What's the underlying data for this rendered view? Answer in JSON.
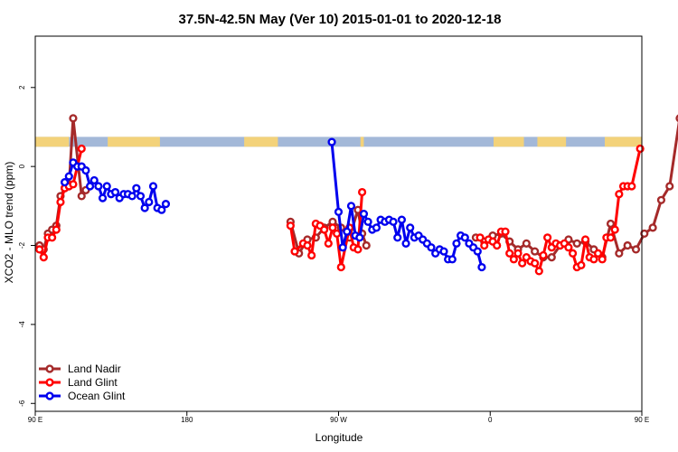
{
  "chart_data": {
    "type": "line",
    "title": "37.5N-42.5N May (Ver 10)   2015-01-01 to 2020-12-18",
    "xlabel": "Longitude",
    "ylabel": "XCO2 - MLO trend (ppm)",
    "xlim": [
      90,
      450
    ],
    "ylim": [
      -6.2,
      3.3
    ],
    "x_ticks": [
      {
        "value": 90,
        "label": "90 E"
      },
      {
        "value": 180,
        "label": "180"
      },
      {
        "value": 270,
        "label": "90 W"
      },
      {
        "value": 360,
        "label": "0"
      },
      {
        "value": 450,
        "label": "90 E"
      },
      {
        "value": 540,
        "label": "180"
      }
    ],
    "y_ticks": [
      {
        "value": 2,
        "label": "2"
      },
      {
        "value": 0,
        "label": "0"
      },
      {
        "value": -2,
        "label": "-2"
      },
      {
        "value": -4,
        "label": "-4"
      },
      {
        "value": -6,
        "label": "-6"
      }
    ],
    "legend_position": "bottom-left",
    "surface_band": {
      "y_range": [
        0.5,
        0.75
      ],
      "ocean_color": "#a3b8d8",
      "land_color": "#f3d27a",
      "land_segments": [
        [
          90,
          110
        ],
        [
          133,
          164
        ],
        [
          214,
          234
        ],
        [
          283,
          285
        ],
        [
          362,
          380
        ],
        [
          388,
          405
        ],
        [
          428,
          454
        ],
        [
          477,
          499
        ],
        [
          518,
          540
        ]
      ]
    },
    "series": [
      {
        "name": "Land Nadir",
        "color": "#a52a2a",
        "segments": [
          [
            [
              92.5,
              -2.0
            ],
            [
              95,
              -2.1
            ],
            [
              97.5,
              -1.7
            ],
            [
              100,
              -1.6
            ],
            [
              102.5,
              -1.5
            ],
            [
              105,
              -0.75
            ],
            [
              107.5,
              -0.55
            ],
            [
              110,
              -0.5
            ],
            [
              112.5,
              1.22
            ],
            [
              117.5,
              -0.75
            ],
            [
              120,
              -0.6
            ]
          ],
          [
            [
              241.5,
              -1.4
            ],
            [
              246.5,
              -2.2
            ],
            [
              251.5,
              -1.85
            ],
            [
              256.5,
              -1.8
            ],
            [
              261.5,
              -1.55
            ],
            [
              266.5,
              -1.4
            ],
            [
              271.5,
              -1.55
            ],
            [
              276.5,
              -1.8
            ],
            [
              281.5,
              -1.1
            ],
            [
              284,
              -1.7
            ],
            [
              286.5,
              -2.0
            ]
          ],
          [
            [
              351.5,
              -1.8
            ],
            [
              356.5,
              -1.9
            ],
            [
              361.5,
              -1.75
            ],
            [
              366.5,
              -1.7
            ],
            [
              371.5,
              -1.9
            ],
            [
              376.5,
              -2.1
            ],
            [
              381.5,
              -1.95
            ],
            [
              386.5,
              -2.15
            ],
            [
              391.5,
              -2.3
            ],
            [
              396.5,
              -2.3
            ],
            [
              401.5,
              -2.0
            ],
            [
              406.5,
              -1.85
            ],
            [
              411.5,
              -1.95
            ],
            [
              416.5,
              -1.9
            ],
            [
              421.5,
              -2.1
            ],
            [
              426.5,
              -2.3
            ],
            [
              431.5,
              -1.45
            ],
            [
              436.5,
              -2.2
            ],
            [
              441.5,
              -2.0
            ],
            [
              446.5,
              -2.1
            ],
            [
              451.5,
              -1.7
            ],
            [
              456.5,
              -1.55
            ],
            [
              461.5,
              -0.85
            ],
            [
              466.5,
              -0.5
            ],
            [
              472.5,
              1.22
            ],
            [
              477.5,
              -0.75
            ],
            [
              480,
              -0.6
            ]
          ]
        ]
      },
      {
        "name": "Land Glint",
        "color": "#ff0000",
        "segments": [
          [
            [
              92.5,
              -2.1
            ],
            [
              95,
              -2.3
            ],
            [
              97.5,
              -1.8
            ],
            [
              100,
              -1.8
            ],
            [
              102.5,
              -1.6
            ],
            [
              105,
              -0.9
            ],
            [
              107.5,
              -0.55
            ],
            [
              110,
              -0.5
            ],
            [
              112.5,
              -0.45
            ],
            [
              117.5,
              0.45
            ]
          ],
          [
            [
              241.5,
              -1.5
            ],
            [
              244,
              -2.15
            ],
            [
              249,
              -1.95
            ],
            [
              251.5,
              -2.0
            ],
            [
              254,
              -2.25
            ],
            [
              256.5,
              -1.45
            ],
            [
              259,
              -1.5
            ],
            [
              261.5,
              -1.6
            ],
            [
              264,
              -1.95
            ],
            [
              266.5,
              -1.55
            ],
            [
              269,
              -1.7
            ],
            [
              271.5,
              -2.55
            ],
            [
              276.5,
              -1.55
            ],
            [
              279,
              -2.05
            ],
            [
              281.5,
              -2.1
            ],
            [
              284,
              -0.65
            ]
          ],
          [
            [
              354,
              -1.8
            ],
            [
              356.5,
              -2.0
            ],
            [
              359,
              -1.85
            ],
            [
              361.5,
              -1.9
            ],
            [
              364,
              -2.0
            ],
            [
              366.5,
              -1.65
            ],
            [
              369,
              -1.65
            ],
            [
              371.5,
              -2.2
            ],
            [
              374,
              -2.35
            ],
            [
              376.5,
              -2.2
            ],
            [
              379,
              -2.45
            ],
            [
              381.5,
              -2.3
            ],
            [
              384,
              -2.4
            ],
            [
              386.5,
              -2.45
            ],
            [
              389,
              -2.65
            ],
            [
              391.5,
              -2.25
            ],
            [
              394,
              -1.8
            ],
            [
              396.5,
              -2.05
            ],
            [
              399,
              -1.95
            ],
            [
              401.5,
              -2.0
            ],
            [
              404,
              -1.95
            ],
            [
              406.5,
              -2.05
            ],
            [
              409,
              -2.2
            ],
            [
              411.5,
              -2.55
            ],
            [
              414,
              -2.5
            ],
            [
              416.5,
              -1.85
            ],
            [
              419,
              -2.3
            ],
            [
              421.5,
              -2.35
            ],
            [
              424,
              -2.2
            ],
            [
              426.5,
              -2.35
            ],
            [
              429,
              -1.8
            ],
            [
              431.5,
              -1.8
            ],
            [
              434,
              -1.6
            ],
            [
              436.5,
              -0.7
            ],
            [
              439,
              -0.5
            ],
            [
              441.5,
              -0.5
            ],
            [
              444,
              -0.5
            ],
            [
              449,
              0.45
            ]
          ]
        ]
      },
      {
        "name": "Ocean Glint",
        "color": "#0000ee",
        "segments": [
          [
            [
              107.5,
              -0.4
            ],
            [
              110,
              -0.25
            ],
            [
              112.5,
              0.1
            ],
            [
              115,
              0.0
            ],
            [
              117.5,
              0.0
            ],
            [
              120,
              -0.1
            ],
            [
              122.5,
              -0.5
            ],
            [
              125,
              -0.35
            ],
            [
              127.5,
              -0.5
            ],
            [
              130,
              -0.8
            ],
            [
              132.5,
              -0.5
            ],
            [
              135,
              -0.7
            ],
            [
              137.5,
              -0.65
            ],
            [
              140,
              -0.8
            ],
            [
              142.5,
              -0.7
            ],
            [
              145,
              -0.7
            ],
            [
              147.5,
              -0.75
            ],
            [
              150,
              -0.55
            ],
            [
              152.5,
              -0.75
            ],
            [
              155,
              -1.05
            ],
            [
              157.5,
              -0.9
            ],
            [
              160,
              -0.5
            ],
            [
              162.5,
              -1.05
            ],
            [
              165,
              -1.1
            ],
            [
              167.5,
              -0.95
            ]
          ],
          [
            [
              266,
              0.62
            ],
            [
              270,
              -1.15
            ],
            [
              272.5,
              -2.05
            ],
            [
              275,
              -1.65
            ],
            [
              277.5,
              -1.0
            ],
            [
              280,
              -1.75
            ],
            [
              282.5,
              -1.8
            ],
            [
              285,
              -1.2
            ],
            [
              287.5,
              -1.4
            ],
            [
              290,
              -1.6
            ],
            [
              292.5,
              -1.55
            ],
            [
              295,
              -1.35
            ],
            [
              297.5,
              -1.4
            ],
            [
              300,
              -1.35
            ],
            [
              302.5,
              -1.4
            ],
            [
              305,
              -1.8
            ],
            [
              307.5,
              -1.35
            ],
            [
              310,
              -1.95
            ],
            [
              312.5,
              -1.55
            ],
            [
              315,
              -1.8
            ],
            [
              317.5,
              -1.75
            ],
            [
              320,
              -1.85
            ],
            [
              322.5,
              -1.95
            ],
            [
              325,
              -2.05
            ],
            [
              327.5,
              -2.2
            ],
            [
              330,
              -2.1
            ],
            [
              332.5,
              -2.15
            ],
            [
              335,
              -2.35
            ],
            [
              337.5,
              -2.35
            ],
            [
              340,
              -1.95
            ],
            [
              342.5,
              -1.75
            ],
            [
              345,
              -1.8
            ],
            [
              347.5,
              -1.95
            ],
            [
              350,
              -2.05
            ],
            [
              352.5,
              -2.15
            ],
            [
              355,
              -2.55
            ]
          ]
        ]
      }
    ]
  }
}
